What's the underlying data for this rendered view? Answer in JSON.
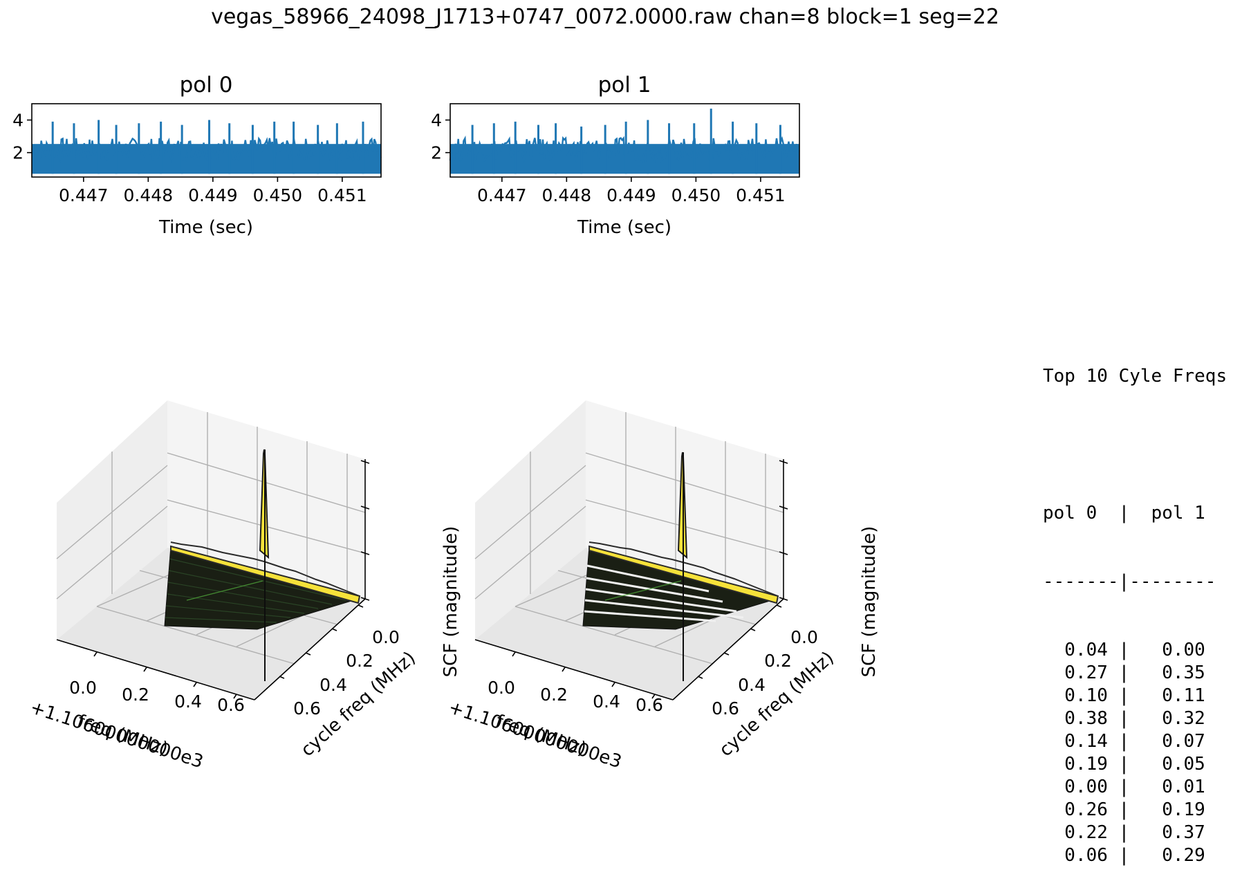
{
  "figure": {
    "suptitle": "vegas_58966_24098_J1713+0747_0072.0000.raw chan=8 block=1 seg=22"
  },
  "chart_data": [
    {
      "type": "line",
      "title": "pol 0",
      "xlabel": "Time (sec)",
      "ylabel": "",
      "xlim": [
        0.4462,
        0.4516
      ],
      "ylim": [
        0.5,
        5.0
      ],
      "xticks": [
        "0.447",
        "0.448",
        "0.449",
        "0.450",
        "0.451"
      ],
      "yticks": [
        "2",
        "4"
      ],
      "color": "#1f77b4",
      "series": [
        {
          "x_range": [
            0.4462,
            0.4516
          ],
          "baseline": 0.7,
          "typical_max": 2.7,
          "peak_values": [
            3.9,
            3.8,
            4.0,
            3.7,
            3.8,
            3.9,
            3.7,
            4.0,
            3.8,
            3.7,
            3.9,
            3.9,
            3.7,
            3.8,
            3.9
          ]
        }
      ]
    },
    {
      "type": "line",
      "title": "pol 1",
      "xlabel": "Time (sec)",
      "ylabel": "",
      "xlim": [
        0.4462,
        0.4516
      ],
      "ylim": [
        0.5,
        5.0
      ],
      "xticks": [
        "0.447",
        "0.448",
        "0.449",
        "0.450",
        "0.451"
      ],
      "yticks": [
        "2",
        "4"
      ],
      "color": "#1f77b4",
      "series": [
        {
          "x_range": [
            0.4462,
            0.4516
          ],
          "baseline": 0.7,
          "typical_max": 2.7,
          "peak_values": [
            3.7,
            3.8,
            3.9,
            3.7,
            3.8,
            3.6,
            3.7,
            3.9,
            4.0,
            3.8,
            3.8,
            4.7,
            3.9,
            3.8,
            3.7
          ]
        }
      ]
    },
    {
      "type": "surface",
      "title": "",
      "xlabel": "freq (MHz)",
      "ylabel": "cycle freq (MHz)",
      "zlabel": "SCF (magnitude)",
      "x_offset_label": "+1.10600000000e3",
      "xticks": [
        "0.0",
        "0.2",
        "0.4",
        "0.6"
      ],
      "yticks": [
        "0.0",
        "0.2",
        "0.4",
        "0.6"
      ],
      "colormap": "viridis",
      "peak": {
        "freq": 0.3,
        "cycle_freq": 0.0,
        "relative_height": 1.0
      },
      "ridge_relative_height": 0.2
    },
    {
      "type": "surface",
      "title": "",
      "xlabel": "freq (MHz)",
      "ylabel": "cycle freq (MHz)",
      "zlabel": "SCF (magnitude)",
      "x_offset_label": "+1.10600000000e3",
      "xticks": [
        "0.0",
        "0.2",
        "0.4",
        "0.6"
      ],
      "yticks": [
        "0.0",
        "0.2",
        "0.4",
        "0.6"
      ],
      "colormap": "viridis",
      "peak": {
        "freq": 0.3,
        "cycle_freq": 0.0,
        "relative_height": 1.0
      },
      "ridge_relative_height": 0.2
    },
    {
      "type": "table",
      "title": "Top 10 Cyle Freqs",
      "columns": [
        "pol 0",
        "pol 1"
      ],
      "divider": "-------|--------",
      "rows": [
        [
          "0.04",
          "0.00"
        ],
        [
          "0.27",
          "0.35"
        ],
        [
          "0.10",
          "0.11"
        ],
        [
          "0.38",
          "0.32"
        ],
        [
          "0.14",
          "0.07"
        ],
        [
          "0.19",
          "0.05"
        ],
        [
          "0.00",
          "0.01"
        ],
        [
          "0.26",
          "0.19"
        ],
        [
          "0.22",
          "0.37"
        ],
        [
          "0.06",
          "0.29"
        ]
      ]
    }
  ]
}
